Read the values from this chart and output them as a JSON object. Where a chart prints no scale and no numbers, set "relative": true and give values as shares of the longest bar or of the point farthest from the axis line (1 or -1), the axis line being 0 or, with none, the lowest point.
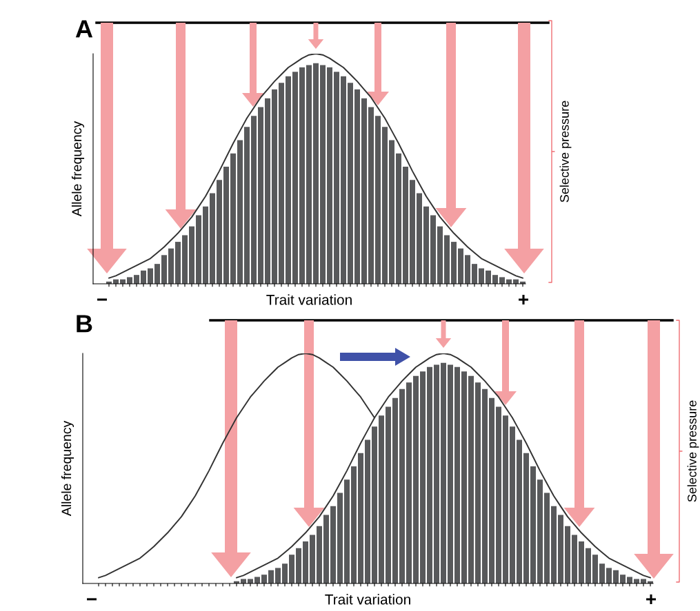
{
  "chart_data": [
    {
      "type": "bar",
      "title": "A",
      "xlabel": "Trait variation",
      "ylabel": "Allele frequency",
      "relative": true,
      "annotations": [
        "−",
        "+",
        "Selective pressure"
      ],
      "categories": [
        null,
        null,
        null,
        null,
        null,
        null,
        null,
        null,
        null,
        null,
        null,
        null,
        null,
        null,
        null,
        null,
        null,
        null,
        null,
        null,
        null,
        null,
        null,
        null,
        null,
        null,
        null,
        null,
        null,
        null,
        null,
        null,
        null,
        null,
        null,
        null,
        null,
        null,
        null,
        null,
        null,
        null,
        null,
        null,
        null,
        null,
        null,
        null,
        null,
        null,
        null,
        null,
        null,
        null,
        null,
        null,
        null,
        null,
        null,
        null,
        null
      ],
      "series": [
        {
          "color": "#58595b",
          "values": [
            0.01,
            0.02,
            0.02,
            0.03,
            0.04,
            0.06,
            0.07,
            0.09,
            0.13,
            0.16,
            0.19,
            0.22,
            0.26,
            0.31,
            0.35,
            0.41,
            0.47,
            0.53,
            0.59,
            0.65,
            0.71,
            0.76,
            0.8,
            0.84,
            0.88,
            0.91,
            0.94,
            0.96,
            0.98,
            0.99,
            1,
            0.99,
            0.98,
            0.96,
            0.94,
            0.91,
            0.88,
            0.84,
            0.8,
            0.76,
            0.71,
            0.65,
            0.59,
            0.53,
            0.47,
            0.41,
            0.35,
            0.31,
            0.26,
            0.22,
            0.19,
            0.16,
            0.13,
            0.09,
            0.07,
            0.06,
            0.04,
            0.03,
            0.02,
            0.02,
            0.01
          ]
        }
      ]
    },
    {
      "type": "line",
      "relative": true,
      "categories": [
        null,
        null,
        null,
        null,
        null,
        null,
        null,
        null,
        null,
        null,
        null,
        null,
        null,
        null,
        null,
        null,
        null,
        null,
        null,
        null,
        null,
        null,
        null,
        null,
        null,
        null,
        null,
        null,
        null,
        null,
        null,
        null,
        null,
        null,
        null,
        null,
        null,
        null,
        null,
        null,
        null,
        null,
        null,
        null,
        null,
        null,
        null,
        null,
        null,
        null,
        null,
        null,
        null,
        null,
        null,
        null,
        null,
        null,
        null,
        null,
        null
      ],
      "series": [
        {
          "color": "#333333",
          "values": [
            0.025,
            0.035,
            0.05,
            0.065,
            0.08,
            0.095,
            0.11,
            0.135,
            0.16,
            0.19,
            0.22,
            0.255,
            0.29,
            0.335,
            0.38,
            0.435,
            0.49,
            0.55,
            0.61,
            0.665,
            0.72,
            0.765,
            0.81,
            0.845,
            0.88,
            0.91,
            0.94,
            0.96,
            0.98,
            0.995,
            1,
            0.995,
            0.98,
            0.96,
            0.94,
            0.91,
            0.88,
            0.845,
            0.81,
            0.765,
            0.72,
            0.665,
            0.61,
            0.55,
            0.49,
            0.435,
            0.38,
            0.335,
            0.29,
            0.255,
            0.22,
            0.19,
            0.16,
            0.135,
            0.11,
            0.095,
            0.08,
            0.065,
            0.05,
            0.035,
            0.025
          ]
        }
      ]
    },
    {
      "type": "bar",
      "title": "B",
      "xlabel": "Trait variation",
      "ylabel": "Allele frequency",
      "relative": true,
      "annotations": [
        "−",
        "+",
        "Selective pressure"
      ],
      "categories": [
        null,
        null,
        null,
        null,
        null,
        null,
        null,
        null,
        null,
        null,
        null,
        null,
        null,
        null,
        null,
        null,
        null,
        null,
        null,
        null,
        null,
        null,
        null,
        null,
        null,
        null,
        null,
        null,
        null,
        null,
        null,
        null,
        null,
        null,
        null,
        null,
        null,
        null,
        null,
        null,
        null,
        null,
        null,
        null,
        null,
        null,
        null,
        null,
        null,
        null,
        null,
        null,
        null,
        null,
        null,
        null,
        null,
        null,
        null,
        null,
        null
      ],
      "series": [
        {
          "color": "#58595b",
          "values": [
            0.01,
            0.02,
            0.02,
            0.03,
            0.04,
            0.06,
            0.07,
            0.09,
            0.13,
            0.16,
            0.19,
            0.22,
            0.26,
            0.31,
            0.35,
            0.41,
            0.47,
            0.53,
            0.59,
            0.65,
            0.71,
            0.76,
            0.8,
            0.84,
            0.88,
            0.91,
            0.94,
            0.96,
            0.98,
            0.99,
            1,
            0.99,
            0.98,
            0.96,
            0.94,
            0.91,
            0.88,
            0.84,
            0.8,
            0.76,
            0.71,
            0.65,
            0.59,
            0.53,
            0.47,
            0.41,
            0.35,
            0.31,
            0.26,
            0.22,
            0.19,
            0.16,
            0.13,
            0.09,
            0.07,
            0.06,
            0.04,
            0.03,
            0.02,
            0.02,
            0.01
          ]
        }
      ]
    },
    {
      "type": "line",
      "relative": true,
      "categories": [
        null,
        null,
        null,
        null,
        null,
        null,
        null,
        null,
        null,
        null,
        null,
        null,
        null,
        null,
        null,
        null,
        null,
        null,
        null,
        null,
        null,
        null,
        null,
        null,
        null,
        null,
        null,
        null,
        null,
        null,
        null,
        null,
        null,
        null,
        null,
        null,
        null,
        null,
        null,
        null,
        null,
        null,
        null,
        null,
        null,
        null,
        null,
        null,
        null,
        null,
        null,
        null,
        null,
        null,
        null,
        null,
        null,
        null,
        null,
        null,
        null,
        null,
        null,
        null,
        null,
        null,
        null,
        null,
        null,
        null,
        null,
        null,
        null,
        null,
        null,
        null,
        null,
        null,
        null,
        null,
        null
      ],
      "series": [
        {
          "color": "#333333",
          "values": [
            0.025,
            0.035,
            0.05,
            0.065,
            0.08,
            0.095,
            0.11,
            0.135,
            0.16,
            0.19,
            0.22,
            0.255,
            0.29,
            0.335,
            0.38,
            0.435,
            0.49,
            0.55,
            0.61,
            0.665,
            0.72,
            0.765,
            0.81,
            0.845,
            0.88,
            0.91,
            0.94,
            0.96,
            0.98,
            0.995,
            1,
            0.995,
            0.98,
            0.96,
            0.94,
            0.91,
            0.88,
            0.845,
            0.81,
            0.765,
            0.72,
            null,
            null,
            null,
            null,
            null,
            null,
            null,
            null,
            null,
            null,
            null,
            null,
            null,
            null,
            null,
            null,
            null,
            null,
            null,
            null,
            null,
            null,
            null,
            null,
            null,
            null,
            null,
            null,
            null,
            null,
            null,
            null,
            null,
            null,
            null,
            null,
            null,
            null,
            null,
            null
          ]
        },
        {
          "color": "#333333",
          "values": [
            null,
            null,
            null,
            null,
            null,
            null,
            null,
            null,
            null,
            null,
            null,
            null,
            null,
            null,
            null,
            null,
            null,
            null,
            null,
            null,
            0.025,
            0.035,
            0.05,
            0.065,
            0.08,
            0.095,
            0.11,
            0.135,
            0.16,
            0.19,
            0.22,
            0.255,
            0.29,
            0.335,
            0.38,
            0.435,
            0.49,
            0.55,
            0.61,
            0.665,
            0.72,
            0.765,
            0.81,
            0.845,
            0.88,
            0.91,
            0.94,
            0.96,
            0.98,
            0.995,
            1,
            0.995,
            0.98,
            0.96,
            0.94,
            0.91,
            0.88,
            0.845,
            0.81,
            0.765,
            0.72,
            0.665,
            0.61,
            0.55,
            0.49,
            0.435,
            0.38,
            0.335,
            0.29,
            0.255,
            0.22,
            0.19,
            0.16,
            0.135,
            0.11,
            0.095,
            0.08,
            0.065,
            0.05,
            0.035,
            0.025
          ]
        }
      ]
    }
  ]
}
